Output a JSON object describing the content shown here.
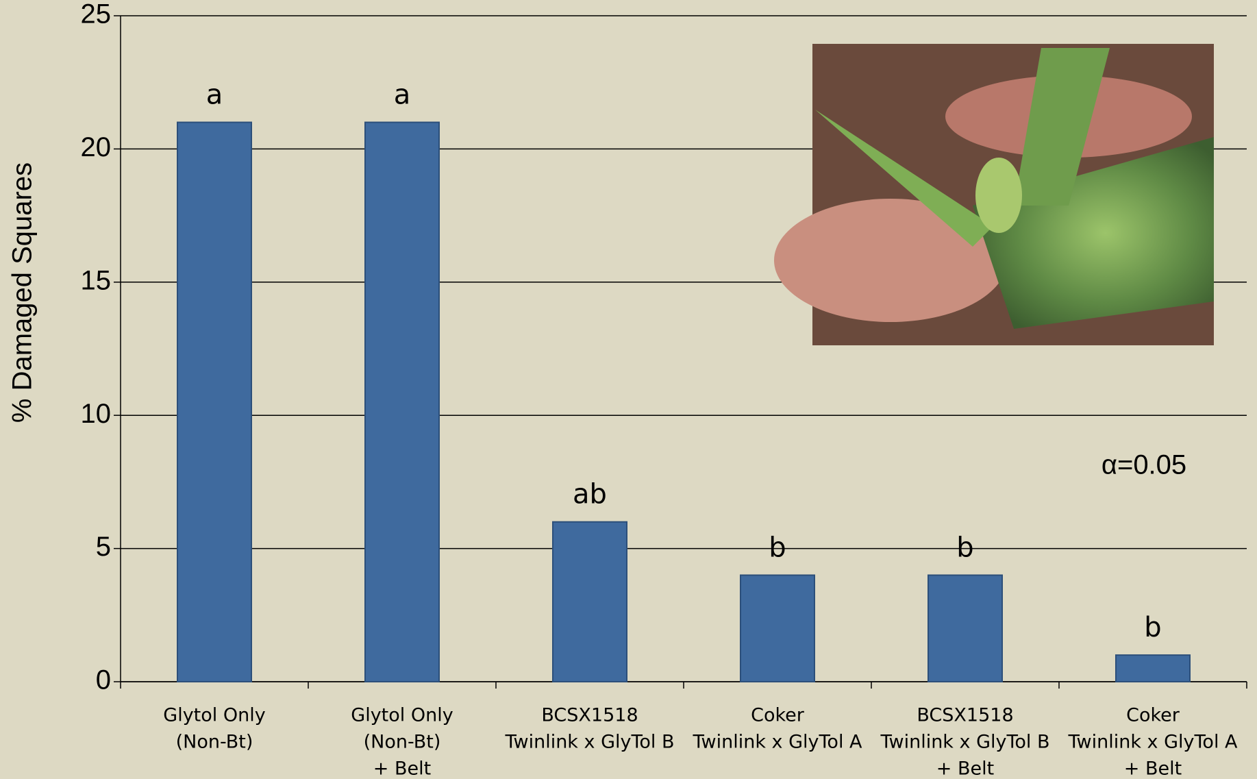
{
  "chart_data": {
    "type": "bar",
    "y_label": "% Damaged Squares",
    "categories": [
      [
        "Glytol Only",
        "(Non-Bt)"
      ],
      [
        "Glytol Only",
        "(Non-Bt)",
        "+ Belt"
      ],
      [
        "BCSX1518",
        "Twinlink x GlyTol B"
      ],
      [
        "Coker",
        "Twinlink x GlyTol A"
      ],
      [
        "BCSX1518",
        "Twinlink x GlyTol B",
        "+ Belt"
      ],
      [
        "Coker",
        "Twinlink x GlyTol A",
        "+ Belt"
      ]
    ],
    "values": [
      21,
      21,
      6,
      4,
      4,
      1
    ],
    "significance_letters": [
      "a",
      "a",
      "ab",
      "b",
      "b",
      "b"
    ],
    "annotation": "α=0.05",
    "color": "#3f6a9e",
    "ylim": [
      0,
      25
    ],
    "yticks": [
      0,
      5,
      10,
      15,
      20,
      25
    ],
    "grid": true
  }
}
